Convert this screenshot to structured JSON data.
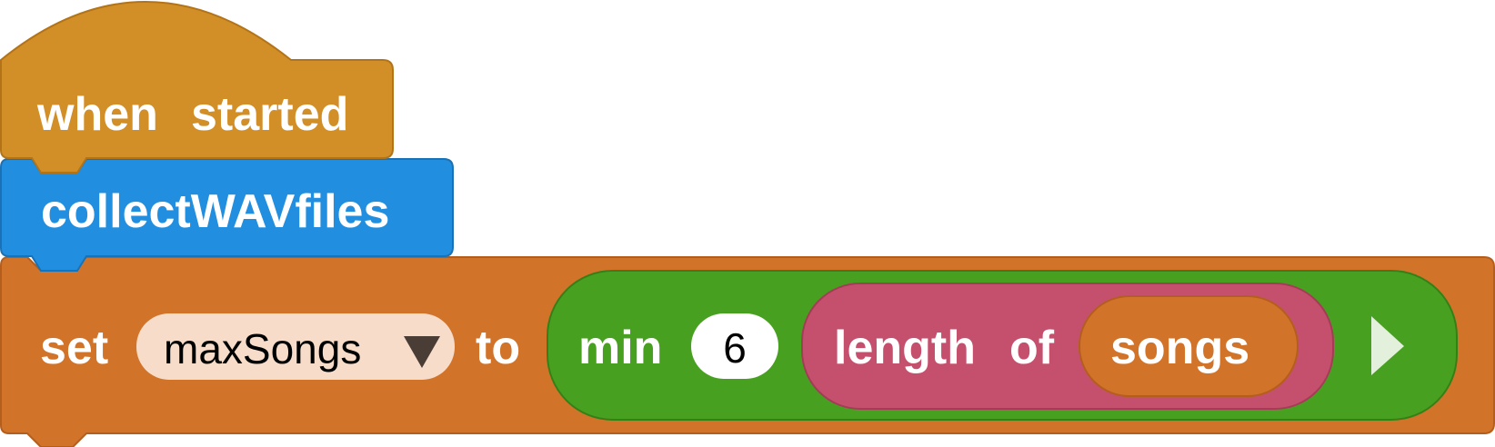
{
  "hat_block": {
    "label_1": "when",
    "label_2": "started",
    "color": "#D38F27"
  },
  "command_block": {
    "label": "collectWAVfiles",
    "color": "#228EDF"
  },
  "set_block": {
    "label_set": "set",
    "variable": "maxSongs",
    "label_to": "to",
    "color": "#D2732A",
    "variable_pill_color": "#F7DDC9",
    "dropdown_icon": "triangle-down-icon",
    "min_block": {
      "label": "min",
      "value": "6",
      "color": "#48A021",
      "expand_icon": "triangle-right-icon",
      "length_block": {
        "label_1": "length",
        "label_2": "of",
        "color": "#C5506D",
        "songs_var": {
          "label": "songs",
          "color": "#D2732A"
        }
      }
    }
  }
}
